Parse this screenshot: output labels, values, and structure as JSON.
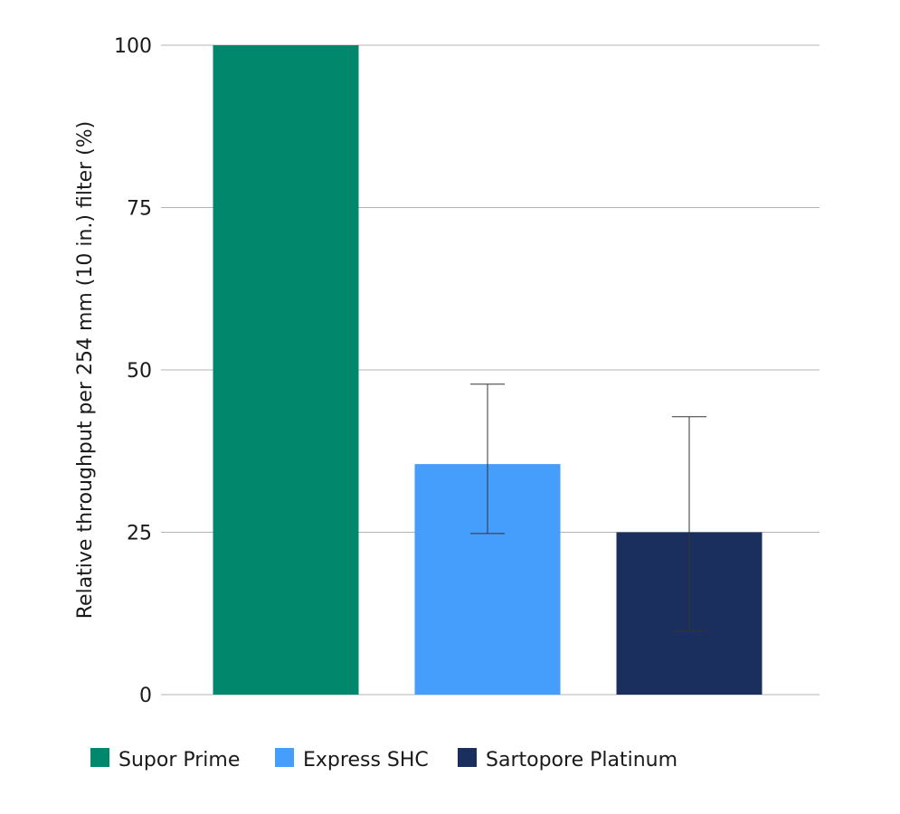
{
  "chart_data": {
    "type": "bar",
    "title": "",
    "xlabel": "",
    "ylabel": "Relative throughput per 254 mm (10 in.) filter (%)",
    "ylim": [
      0,
      100
    ],
    "yticks": [
      0,
      25,
      50,
      75,
      100
    ],
    "grid": true,
    "legend_position": "bottom",
    "categories": [
      "Supor Prime",
      "Express SHC",
      "Sartopore Platinum"
    ],
    "values": [
      100,
      35.5,
      25
    ],
    "error_bars": [
      null,
      {
        "low": 24.8,
        "high": 47.8
      },
      {
        "low": 9.8,
        "high": 42.8
      }
    ],
    "colors": [
      "#00876c",
      "#459efc",
      "#1b2f5e"
    ],
    "legend": [
      {
        "label": "Supor Prime",
        "color": "#00876c"
      },
      {
        "label": "Express SHC",
        "color": "#459efc"
      },
      {
        "label": "Sartopore Platinum",
        "color": "#1b2f5e"
      }
    ]
  }
}
